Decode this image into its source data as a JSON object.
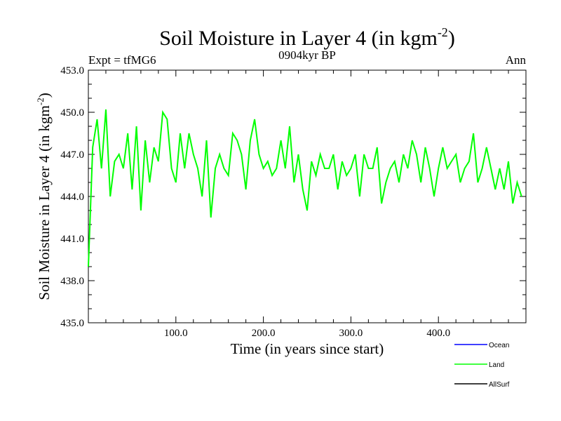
{
  "chart_data": {
    "type": "line",
    "title": "Soil Moisture in Layer 4 (in kgm",
    "title_sup": "-2",
    "title_close": ")",
    "header_left": "Expt = tfMG6",
    "header_center": "0904kyr BP",
    "header_right": "Ann",
    "xlabel": "Time (in years since start)",
    "ylabel": "Soil Moisture in Layer 4 (in kgm",
    "ylabel_sup": "-2",
    "ylabel_close": ")",
    "xlim": [
      0,
      500
    ],
    "ylim": [
      435,
      453
    ],
    "x_ticks": [
      100,
      200,
      300,
      400
    ],
    "x_tick_labels": [
      "100.0",
      "200.0",
      "300.0",
      "400.0"
    ],
    "y_ticks": [
      435,
      438,
      441,
      444,
      447,
      450,
      453
    ],
    "y_tick_labels": [
      "435.0",
      "438.0",
      "441.0",
      "444.0",
      "447.0",
      "450.0",
      "453.0"
    ],
    "legend": [
      {
        "name": "Ocean",
        "color": "#0000ff"
      },
      {
        "name": "Land",
        "color": "#00ff00"
      },
      {
        "name": "AllSurf",
        "color": "#000000"
      }
    ],
    "series": [
      {
        "name": "Land",
        "color": "#00ff00",
        "x_start": 0,
        "x_step": 5,
        "values": [
          439.0,
          447.5,
          449.5,
          446.0,
          450.2,
          444.0,
          446.5,
          447.0,
          446.0,
          448.5,
          444.5,
          449.0,
          443.0,
          448.0,
          445.0,
          447.5,
          446.5,
          450.0,
          449.5,
          446.0,
          445.0,
          448.5,
          446.0,
          448.5,
          447.0,
          446.0,
          444.0,
          448.0,
          442.5,
          446.0,
          447.0,
          446.0,
          445.5,
          448.5,
          448.0,
          447.0,
          444.5,
          448.0,
          449.5,
          447.0,
          446.0,
          446.5,
          445.5,
          446.0,
          448.0,
          446.0,
          449.0,
          445.0,
          447.0,
          444.5,
          443.0,
          446.5,
          445.5,
          447.0,
          446.0,
          446.0,
          447.0,
          444.5,
          446.5,
          445.5,
          446.0,
          447.0,
          444.0,
          447.0,
          446.0,
          446.0,
          447.5,
          443.5,
          445.0,
          446.0,
          446.5,
          445.0,
          447.0,
          446.0,
          448.0,
          447.0,
          445.0,
          447.5,
          446.0,
          444.0,
          446.0,
          447.5,
          446.0,
          446.5,
          447.0,
          445.0,
          446.0,
          446.5,
          448.5,
          445.0,
          446.0,
          447.5,
          446.0,
          444.5,
          446.0,
          444.5,
          446.5,
          443.5,
          445.0,
          444.0
        ],
        "note": "visual approximation of the noisy green trace; one value per 5 years"
      }
    ]
  }
}
